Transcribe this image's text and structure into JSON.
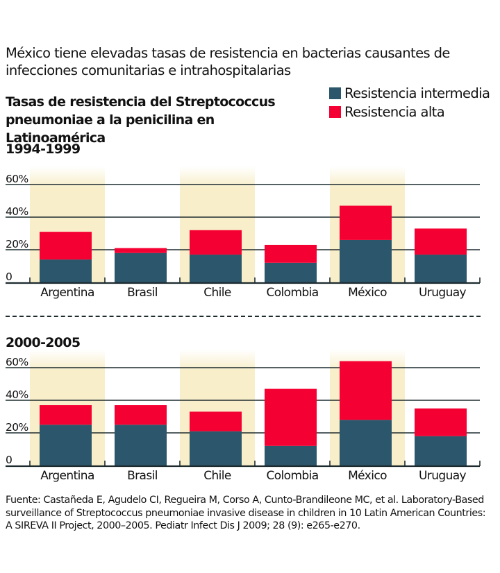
{
  "headline": "México tiene elevadas tasas de resistencia en bacterias causantes de infecciones comunitarias e intrahospitalarias",
  "subtitle_line1": "Tasas de resistencia del Streptococcus",
  "subtitle_line2": "pneumoniae a la penicilina en Latinoamérica",
  "legend": [
    {
      "label": "Resistencia intermedia",
      "color": "#2c566b"
    },
    {
      "label": "Resistencia alta",
      "color": "#f50032"
    }
  ],
  "colors": {
    "intermedia": "#2c566b",
    "alta": "#f50032",
    "highlight": "#f8eec9",
    "grid": "#1d2b2f"
  },
  "source_text": "Fuente: Castañeda E, Agudelo CI,  Regueira M, Corso A, Cunto-Brandileone MC, et al. Laboratory-Based surveillance of Streptococcus pneumoniae invasive disease in children in 10 Latin American Countries: A SIREVA II Project,  2000–2005. Pediatr Infect Dis J 2009; 28 (9): e265-e270.",
  "chart_data": [
    {
      "type": "bar",
      "stacked": true,
      "title": "1994-1999",
      "categories": [
        "Argentina",
        "Brasil",
        "Chile",
        "Colombia",
        "México",
        "Uruguay"
      ],
      "highlighted_categories": [
        "Argentina",
        "Chile",
        "México"
      ],
      "series": [
        {
          "name": "Resistencia intermedia",
          "values": [
            14,
            18,
            17,
            12,
            26,
            17
          ]
        },
        {
          "name": "Resistencia alta",
          "values": [
            17,
            3,
            15,
            11,
            21,
            16
          ]
        }
      ],
      "totals": [
        31,
        21,
        32,
        23,
        47,
        33
      ],
      "ylim": [
        0,
        60
      ],
      "yticks": [
        0,
        20,
        40,
        60
      ],
      "ytick_labels": [
        "0",
        "20%",
        "40%",
        "60%"
      ],
      "grid": true,
      "xlabel": "",
      "ylabel": ""
    },
    {
      "type": "bar",
      "stacked": true,
      "title": "2000-2005",
      "categories": [
        "Argentina",
        "Brasil",
        "Chile",
        "Colombia",
        "México",
        "Uruguay"
      ],
      "highlighted_categories": [
        "Argentina",
        "Chile",
        "México"
      ],
      "series": [
        {
          "name": "Resistencia intermedia",
          "values": [
            25,
            25,
            21,
            12,
            28,
            18
          ]
        },
        {
          "name": "Resistencia alta",
          "values": [
            12,
            12,
            12,
            35,
            36,
            17
          ]
        }
      ],
      "totals": [
        37,
        37,
        33,
        47,
        64,
        35
      ],
      "ylim": [
        0,
        60
      ],
      "yticks": [
        0,
        20,
        40,
        60
      ],
      "ytick_labels": [
        "0",
        "20%",
        "40%",
        "60%"
      ],
      "grid": true,
      "xlabel": "",
      "ylabel": ""
    }
  ]
}
